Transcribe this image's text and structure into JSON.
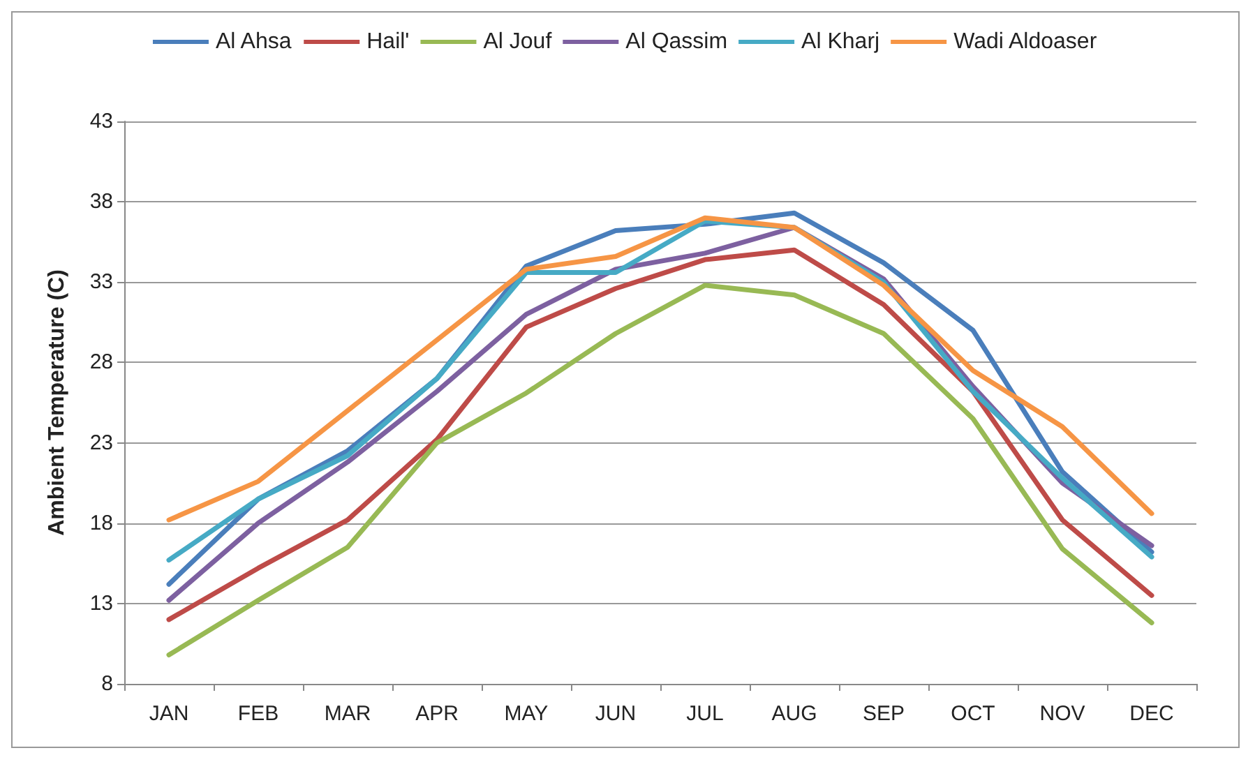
{
  "chart_data": {
    "type": "line",
    "ylabel": "Ambient Temperature (C)",
    "categories": [
      "JAN",
      "FEB",
      "MAR",
      "APR",
      "MAY",
      "JUN",
      "JUL",
      "AUG",
      "SEP",
      "OCT",
      "NOV",
      "DEC"
    ],
    "series": [
      {
        "name": "Al Ahsa",
        "color": "#4a7ebb",
        "values": [
          14.2,
          19.5,
          22.5,
          27,
          34,
          36.2,
          36.6,
          37.3,
          34.2,
          30,
          21.2,
          16.2
        ]
      },
      {
        "name": "Hail'",
        "color": "#be4b48",
        "values": [
          12,
          15.2,
          18.2,
          23.2,
          30.2,
          32.6,
          34.4,
          35,
          31.6,
          26.2,
          18.2,
          13.5
        ]
      },
      {
        "name": "Al Jouf",
        "color": "#98b954",
        "values": [
          9.8,
          13.2,
          16.5,
          23,
          26.1,
          29.8,
          32.8,
          32.2,
          29.8,
          24.5,
          16.4,
          11.8
        ]
      },
      {
        "name": "Al Qassim",
        "color": "#7d60a0",
        "values": [
          13.2,
          18,
          21.8,
          26.2,
          31,
          33.8,
          34.8,
          36.4,
          33.2,
          26.5,
          20.5,
          16.6
        ]
      },
      {
        "name": "Al Kharj",
        "color": "#46aac5",
        "values": [
          15.7,
          19.5,
          22.2,
          27,
          33.6,
          33.6,
          36.8,
          36.4,
          33,
          26.2,
          20.8,
          15.9
        ]
      },
      {
        "name": "Wadi Aldoaser",
        "color": "#f69545",
        "values": [
          18.2,
          20.6,
          25,
          29.4,
          33.8,
          34.6,
          37,
          36.4,
          32.8,
          27.5,
          24,
          18.6
        ]
      }
    ],
    "ylim": [
      8,
      43
    ],
    "yticks": [
      8,
      13,
      18,
      23,
      28,
      33,
      38,
      43
    ],
    "grid": "y",
    "legend": "top",
    "marker": "none",
    "line_style": "solid"
  }
}
